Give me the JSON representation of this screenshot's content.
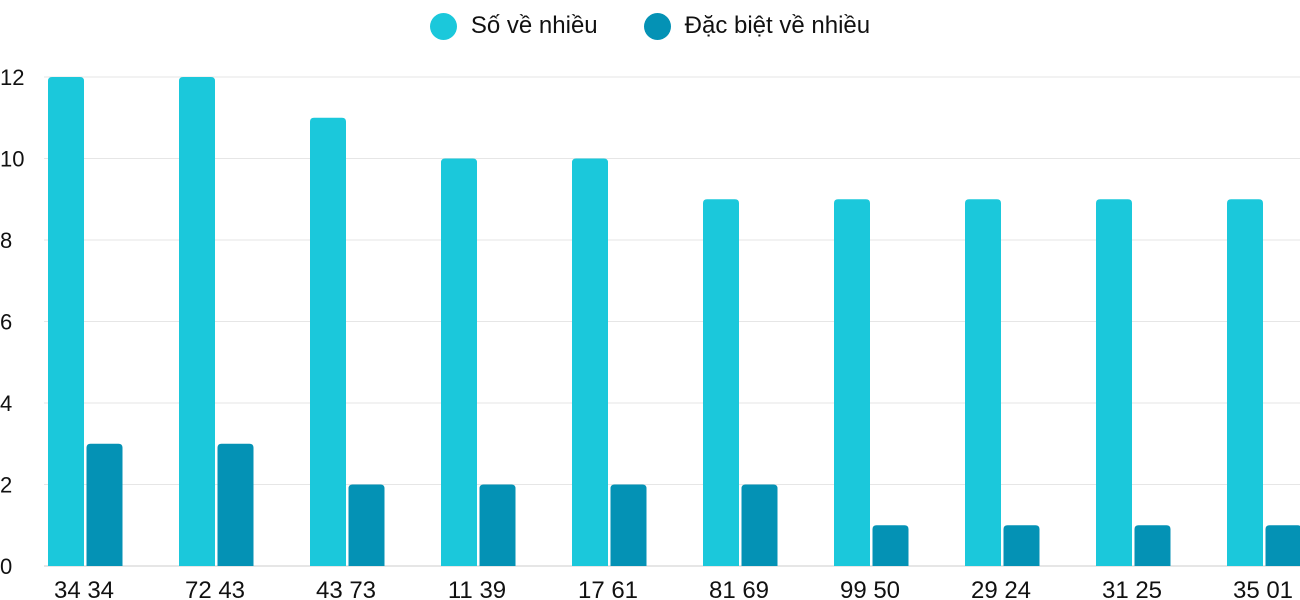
{
  "chart_data": {
    "type": "bar",
    "categories": [
      "34 34",
      "72 43",
      "43 73",
      "11 39",
      "17 61",
      "81 69",
      "99 50",
      "29 24",
      "31 25",
      "35 01"
    ],
    "series": [
      {
        "name": "Số về nhiều",
        "color": "#1bc8db",
        "values": [
          12,
          12,
          11,
          10,
          10,
          9,
          9,
          9,
          9,
          9
        ]
      },
      {
        "name": "Đặc biệt về nhiều",
        "color": "#0492b5",
        "values": [
          3,
          3,
          2,
          2,
          2,
          2,
          1,
          1,
          1,
          1
        ]
      }
    ],
    "ylim": [
      0,
      12
    ],
    "yticks": [
      "0",
      "2",
      "4",
      "6",
      "8",
      "10",
      "12"
    ],
    "grid": true,
    "legend": "top-center"
  }
}
